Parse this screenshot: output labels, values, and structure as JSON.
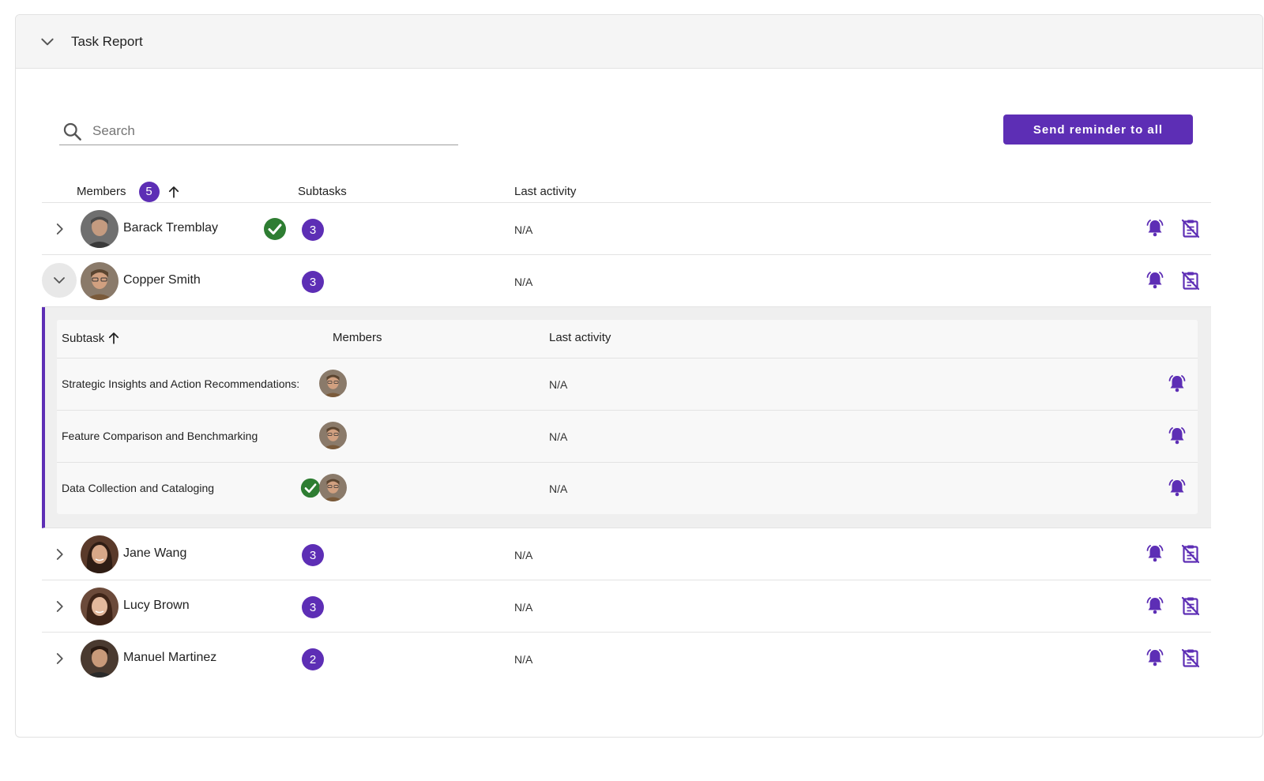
{
  "panel": {
    "title": "Task Report"
  },
  "search": {
    "placeholder": "Search",
    "value": ""
  },
  "actions": {
    "send_all_label": "Send reminder to all"
  },
  "colors": {
    "accent": "#5d2eb5",
    "success": "#2e7d32"
  },
  "table": {
    "headers": {
      "members": "Members",
      "members_count": "5",
      "subtasks": "Subtasks",
      "last_activity": "Last activity"
    },
    "rows": [
      {
        "name": "Barack Tremblay",
        "subtasks": "3",
        "last_activity": "N/A",
        "completed": true
      },
      {
        "name": "Copper Smith",
        "subtasks": "3",
        "last_activity": "N/A",
        "completed": false,
        "expanded": true
      },
      {
        "name": "Jane Wang",
        "subtasks": "3",
        "last_activity": "N/A",
        "completed": false
      },
      {
        "name": "Lucy Brown",
        "subtasks": "3",
        "last_activity": "N/A",
        "completed": false
      },
      {
        "name": "Manuel Martinez",
        "subtasks": "2",
        "last_activity": "N/A",
        "completed": false
      }
    ]
  },
  "subtable": {
    "headers": {
      "subtask": "Subtask",
      "members": "Members",
      "last_activity": "Last activity"
    },
    "rows": [
      {
        "name": "Strategic Insights and Action Recommendations:",
        "last_activity": "N/A",
        "completed": false
      },
      {
        "name": "Feature Comparison and Benchmarking",
        "last_activity": "N/A",
        "completed": false
      },
      {
        "name": "Data Collection and Cataloging",
        "last_activity": "N/A",
        "completed": true
      }
    ]
  }
}
